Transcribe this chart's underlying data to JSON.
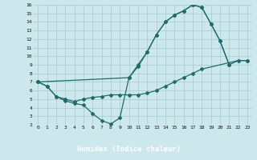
{
  "xlabel": "Humidex (Indice chaleur)",
  "bg_color": "#cde8ec",
  "grid_color": "#aacdd4",
  "line_color": "#1e6b6b",
  "xlabel_bg": "#2c5f6b",
  "xlabel_fg": "#ffffff",
  "line1_x": [
    0,
    1,
    2,
    3,
    4,
    5,
    6,
    7,
    8,
    9,
    10,
    11,
    12,
    13,
    14,
    15,
    16,
    17,
    18,
    19,
    20,
    21
  ],
  "line1_y": [
    7.0,
    6.5,
    5.3,
    4.8,
    4.5,
    4.3,
    3.3,
    2.5,
    2.1,
    2.8,
    7.5,
    8.8,
    10.5,
    12.5,
    14.0,
    14.8,
    15.3,
    16.0,
    15.7,
    13.8,
    11.8,
    9.0
  ],
  "line2_x": [
    0,
    1,
    2,
    3,
    4,
    5,
    6,
    7,
    8,
    9,
    10,
    11,
    12,
    13,
    14,
    15,
    16,
    17,
    18,
    22,
    23
  ],
  "line2_y": [
    7.0,
    6.5,
    5.3,
    5.0,
    4.7,
    5.0,
    5.2,
    5.3,
    5.5,
    5.5,
    5.5,
    5.5,
    5.7,
    6.0,
    6.5,
    7.0,
    7.5,
    8.0,
    8.5,
    9.5,
    9.5
  ],
  "line3_x": [
    0,
    10,
    11,
    12,
    13,
    14,
    15,
    16,
    17,
    18,
    19,
    20,
    21,
    22,
    23
  ],
  "line3_y": [
    7.0,
    7.5,
    9.0,
    10.5,
    12.5,
    14.0,
    14.8,
    15.3,
    16.0,
    15.7,
    13.8,
    11.8,
    9.0,
    9.5,
    9.5
  ],
  "xlim": [
    -0.5,
    23.5
  ],
  "ylim": [
    2,
    16
  ],
  "xticks": [
    0,
    1,
    2,
    3,
    4,
    5,
    6,
    7,
    8,
    9,
    10,
    11,
    12,
    13,
    14,
    15,
    16,
    17,
    18,
    19,
    20,
    21,
    22,
    23
  ],
  "yticks": [
    2,
    3,
    4,
    5,
    6,
    7,
    8,
    9,
    10,
    11,
    12,
    13,
    14,
    15,
    16
  ]
}
